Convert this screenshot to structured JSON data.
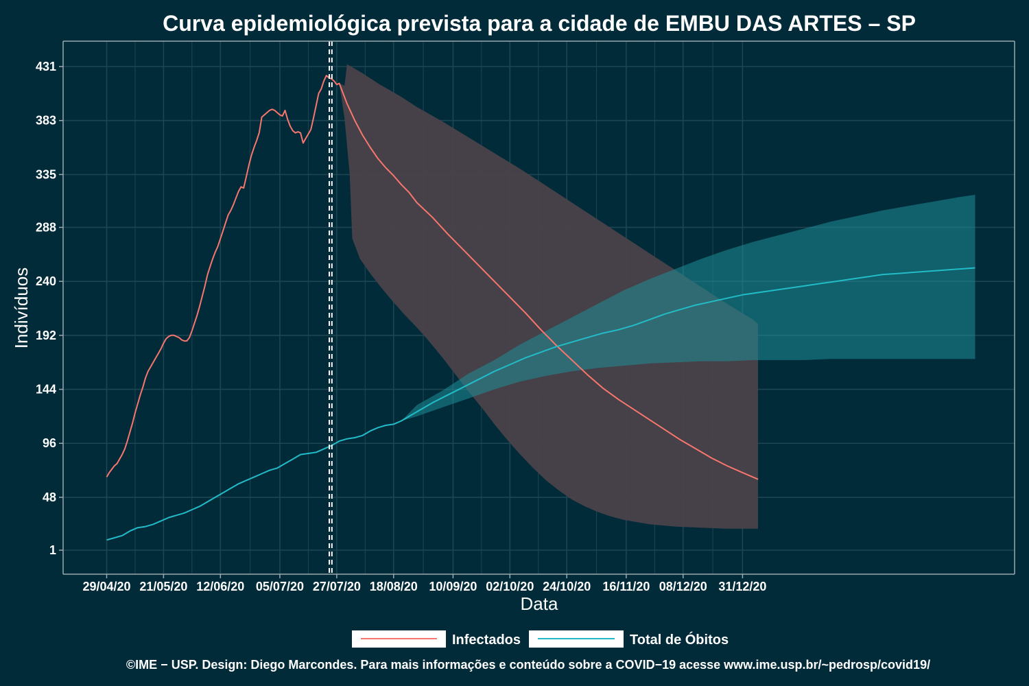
{
  "chart_data": {
    "type": "line",
    "title": "Curva epidemiológica prevista para a cidade de EMBU DAS ARTES – SP",
    "xlabel": "Data",
    "ylabel": "Indivíduos",
    "x_ticks": [
      "29/04/20",
      "21/05/20",
      "12/06/20",
      "05/07/20",
      "27/07/20",
      "18/08/20",
      "10/09/20",
      "02/10/20",
      "24/10/20",
      "16/11/20",
      "08/12/20",
      "31/12/20"
    ],
    "y_ticks": [
      "1",
      "48",
      "96",
      "144",
      "192",
      "240",
      "288",
      "335",
      "383",
      "431"
    ],
    "ylim": [
      -20,
      455
    ],
    "grid": true,
    "legend_position": "bottom",
    "vertical_markers_day": [
      86,
      87
    ],
    "series": [
      {
        "name": "Infectados",
        "color": "#f8766d",
        "observed": [
          [
            0,
            66
          ],
          [
            1,
            70
          ],
          [
            2,
            73
          ],
          [
            3,
            76
          ],
          [
            4,
            78
          ],
          [
            5,
            82
          ],
          [
            6,
            86
          ],
          [
            7,
            91
          ],
          [
            8,
            98
          ],
          [
            9,
            106
          ],
          [
            10,
            114
          ],
          [
            11,
            123
          ],
          [
            12,
            131
          ],
          [
            13,
            139
          ],
          [
            14,
            146
          ],
          [
            15,
            154
          ],
          [
            16,
            160
          ],
          [
            17,
            164
          ],
          [
            18,
            168
          ],
          [
            19,
            172
          ],
          [
            20,
            176
          ],
          [
            21,
            180
          ],
          [
            22,
            185
          ],
          [
            23,
            189
          ],
          [
            24,
            191
          ],
          [
            25,
            192
          ],
          [
            26,
            192
          ],
          [
            27,
            191
          ],
          [
            28,
            190
          ],
          [
            29,
            188
          ],
          [
            30,
            187
          ],
          [
            31,
            187
          ],
          [
            32,
            190
          ],
          [
            33,
            196
          ],
          [
            34,
            203
          ],
          [
            35,
            210
          ],
          [
            36,
            218
          ],
          [
            37,
            227
          ],
          [
            38,
            236
          ],
          [
            39,
            246
          ],
          [
            40,
            253
          ],
          [
            41,
            260
          ],
          [
            42,
            266
          ],
          [
            43,
            271
          ],
          [
            44,
            278
          ],
          [
            45,
            285
          ],
          [
            46,
            292
          ],
          [
            47,
            299
          ],
          [
            48,
            303
          ],
          [
            49,
            308
          ],
          [
            50,
            314
          ],
          [
            51,
            320
          ],
          [
            52,
            324
          ],
          [
            53,
            323
          ],
          [
            54,
            333
          ],
          [
            55,
            343
          ],
          [
            56,
            352
          ],
          [
            57,
            359
          ],
          [
            58,
            365
          ],
          [
            59,
            372
          ],
          [
            60,
            386
          ],
          [
            61,
            388
          ],
          [
            62,
            390
          ],
          [
            63,
            392
          ],
          [
            64,
            393
          ],
          [
            65,
            392
          ],
          [
            66,
            390
          ],
          [
            67,
            388
          ],
          [
            68,
            387
          ],
          [
            69,
            392
          ],
          [
            70,
            384
          ],
          [
            71,
            378
          ],
          [
            72,
            374
          ],
          [
            73,
            372
          ],
          [
            74,
            373
          ],
          [
            75,
            372
          ],
          [
            76,
            363
          ],
          [
            77,
            367
          ],
          [
            78,
            371
          ],
          [
            79,
            375
          ],
          [
            80,
            385
          ],
          [
            81,
            396
          ],
          [
            82,
            407
          ],
          [
            83,
            411
          ],
          [
            84,
            418
          ],
          [
            85,
            423
          ],
          [
            86,
            421
          ],
          [
            87,
            420
          ],
          [
            88,
            418
          ],
          [
            89,
            415
          ],
          [
            90,
            416
          ]
        ],
        "forecast": [
          [
            90,
            416
          ],
          [
            93,
            398
          ],
          [
            96,
            383
          ],
          [
            99,
            370
          ],
          [
            102,
            359
          ],
          [
            105,
            349
          ],
          [
            108,
            341
          ],
          [
            111,
            334
          ],
          [
            114,
            326
          ],
          [
            117,
            319
          ],
          [
            120,
            310
          ],
          [
            126,
            297
          ],
          [
            132,
            282
          ],
          [
            138,
            268
          ],
          [
            144,
            254
          ],
          [
            150,
            240
          ],
          [
            156,
            226
          ],
          [
            162,
            212
          ],
          [
            168,
            197
          ],
          [
            174,
            183
          ],
          [
            180,
            170
          ],
          [
            186,
            157
          ],
          [
            192,
            145
          ],
          [
            198,
            135
          ],
          [
            204,
            126
          ],
          [
            210,
            117
          ],
          [
            216,
            108
          ],
          [
            222,
            99
          ],
          [
            228,
            91
          ],
          [
            234,
            83
          ],
          [
            240,
            76
          ],
          [
            246,
            70
          ],
          [
            250,
            66
          ],
          [
            252,
            64
          ]
        ],
        "band_upper": [
          [
            90,
            416
          ],
          [
            92,
            414
          ],
          [
            93,
            433
          ],
          [
            99,
            425
          ],
          [
            105,
            416
          ],
          [
            114,
            404
          ],
          [
            120,
            395
          ],
          [
            130,
            382
          ],
          [
            140,
            368
          ],
          [
            150,
            354
          ],
          [
            160,
            340
          ],
          [
            170,
            325
          ],
          [
            180,
            310
          ],
          [
            190,
            295
          ],
          [
            200,
            280
          ],
          [
            210,
            265
          ],
          [
            220,
            250
          ],
          [
            230,
            235
          ],
          [
            240,
            220
          ],
          [
            250,
            206
          ],
          [
            252,
            202
          ]
        ],
        "band_lower": [
          [
            90,
            416
          ],
          [
            92,
            385
          ],
          [
            94,
            336
          ],
          [
            95,
            278
          ],
          [
            98,
            260
          ],
          [
            102,
            247
          ],
          [
            106,
            235
          ],
          [
            110,
            224
          ],
          [
            115,
            211
          ],
          [
            120,
            199
          ],
          [
            125,
            186
          ],
          [
            130,
            172
          ],
          [
            135,
            157
          ],
          [
            140,
            142
          ],
          [
            145,
            128
          ],
          [
            150,
            113
          ],
          [
            155,
            99
          ],
          [
            160,
            86
          ],
          [
            165,
            74
          ],
          [
            170,
            63
          ],
          [
            175,
            54
          ],
          [
            180,
            46
          ],
          [
            185,
            40
          ],
          [
            190,
            35
          ],
          [
            195,
            31
          ],
          [
            200,
            28
          ],
          [
            210,
            24
          ],
          [
            220,
            22
          ],
          [
            230,
            21
          ],
          [
            240,
            20
          ],
          [
            250,
            20
          ],
          [
            252,
            20
          ]
        ]
      },
      {
        "name": "Total de Óbitos",
        "color": "#22bcc8",
        "observed": [
          [
            0,
            10
          ],
          [
            3,
            12
          ],
          [
            6,
            14
          ],
          [
            9,
            18
          ],
          [
            12,
            21
          ],
          [
            15,
            22
          ],
          [
            18,
            24
          ],
          [
            21,
            27
          ],
          [
            24,
            30
          ],
          [
            27,
            32
          ],
          [
            30,
            34
          ],
          [
            33,
            37
          ],
          [
            36,
            40
          ],
          [
            39,
            44
          ],
          [
            42,
            48
          ],
          [
            45,
            52
          ],
          [
            48,
            56
          ],
          [
            51,
            60
          ],
          [
            54,
            63
          ],
          [
            57,
            66
          ],
          [
            60,
            69
          ],
          [
            63,
            72
          ],
          [
            66,
            74
          ],
          [
            69,
            78
          ],
          [
            72,
            82
          ],
          [
            75,
            86
          ],
          [
            78,
            87
          ],
          [
            81,
            88
          ],
          [
            84,
            91
          ],
          [
            87,
            94
          ],
          [
            90,
            98
          ],
          [
            93,
            100
          ],
          [
            96,
            101
          ],
          [
            99,
            103
          ],
          [
            102,
            107
          ],
          [
            105,
            110
          ],
          [
            108,
            112
          ],
          [
            111,
            113
          ],
          [
            114,
            116
          ]
        ],
        "forecast": [
          [
            114,
            116
          ],
          [
            120,
            124
          ],
          [
            126,
            132
          ],
          [
            132,
            139
          ],
          [
            138,
            146
          ],
          [
            144,
            153
          ],
          [
            150,
            160
          ],
          [
            156,
            166
          ],
          [
            162,
            172
          ],
          [
            168,
            177
          ],
          [
            174,
            182
          ],
          [
            180,
            186
          ],
          [
            186,
            190
          ],
          [
            192,
            194
          ],
          [
            198,
            197
          ],
          [
            204,
            201
          ],
          [
            210,
            206
          ],
          [
            216,
            211
          ],
          [
            222,
            215
          ],
          [
            228,
            219
          ],
          [
            234,
            222
          ],
          [
            240,
            225
          ],
          [
            246,
            228
          ],
          [
            252,
            230
          ],
          [
            258,
            232
          ],
          [
            264,
            234
          ],
          [
            270,
            236
          ],
          [
            276,
            238
          ],
          [
            282,
            240
          ],
          [
            288,
            242
          ],
          [
            294,
            244
          ],
          [
            300,
            246
          ],
          [
            306,
            247
          ],
          [
            312,
            248
          ],
          [
            318,
            249
          ],
          [
            324,
            250
          ],
          [
            330,
            251
          ],
          [
            336,
            252
          ]
        ],
        "band_upper": [
          [
            114,
            116
          ],
          [
            120,
            130
          ],
          [
            130,
            143
          ],
          [
            140,
            158
          ],
          [
            150,
            170
          ],
          [
            160,
            184
          ],
          [
            170,
            196
          ],
          [
            180,
            208
          ],
          [
            190,
            220
          ],
          [
            200,
            232
          ],
          [
            210,
            242
          ],
          [
            220,
            251
          ],
          [
            230,
            260
          ],
          [
            240,
            268
          ],
          [
            250,
            275
          ],
          [
            260,
            281
          ],
          [
            270,
            287
          ],
          [
            280,
            293
          ],
          [
            290,
            298
          ],
          [
            300,
            303
          ],
          [
            310,
            307
          ],
          [
            320,
            311
          ],
          [
            330,
            315
          ],
          [
            336,
            317
          ]
        ],
        "band_lower": [
          [
            114,
            116
          ],
          [
            120,
            120
          ],
          [
            130,
            128
          ],
          [
            140,
            136
          ],
          [
            150,
            144
          ],
          [
            160,
            151
          ],
          [
            170,
            156
          ],
          [
            180,
            160
          ],
          [
            190,
            163
          ],
          [
            200,
            165
          ],
          [
            210,
            167
          ],
          [
            220,
            168
          ],
          [
            230,
            169
          ],
          [
            240,
            169
          ],
          [
            250,
            170
          ],
          [
            260,
            170
          ],
          [
            270,
            170
          ],
          [
            280,
            171
          ],
          [
            290,
            171
          ],
          [
            300,
            171
          ],
          [
            310,
            171
          ],
          [
            320,
            171
          ],
          [
            330,
            171
          ],
          [
            336,
            171
          ]
        ]
      }
    ]
  },
  "legend": {
    "infected_label": "Infectados",
    "deaths_label": "Total de Óbitos"
  },
  "footer": {
    "credit": "©IME − USP. Design: Diego Marcondes. Para mais informações e conteúdo sobre a COVID−19 acesse www.ime.usp.br/~pedrosp/covid19/"
  },
  "colors": {
    "background": "#022b3a",
    "grid": "#1e4552",
    "axis": "#9aaab0",
    "infected": "#f8766d",
    "infected_band": "#4a4249",
    "deaths": "#22bcc8",
    "deaths_band": "#1f8e97",
    "marker": "#ffffff"
  }
}
